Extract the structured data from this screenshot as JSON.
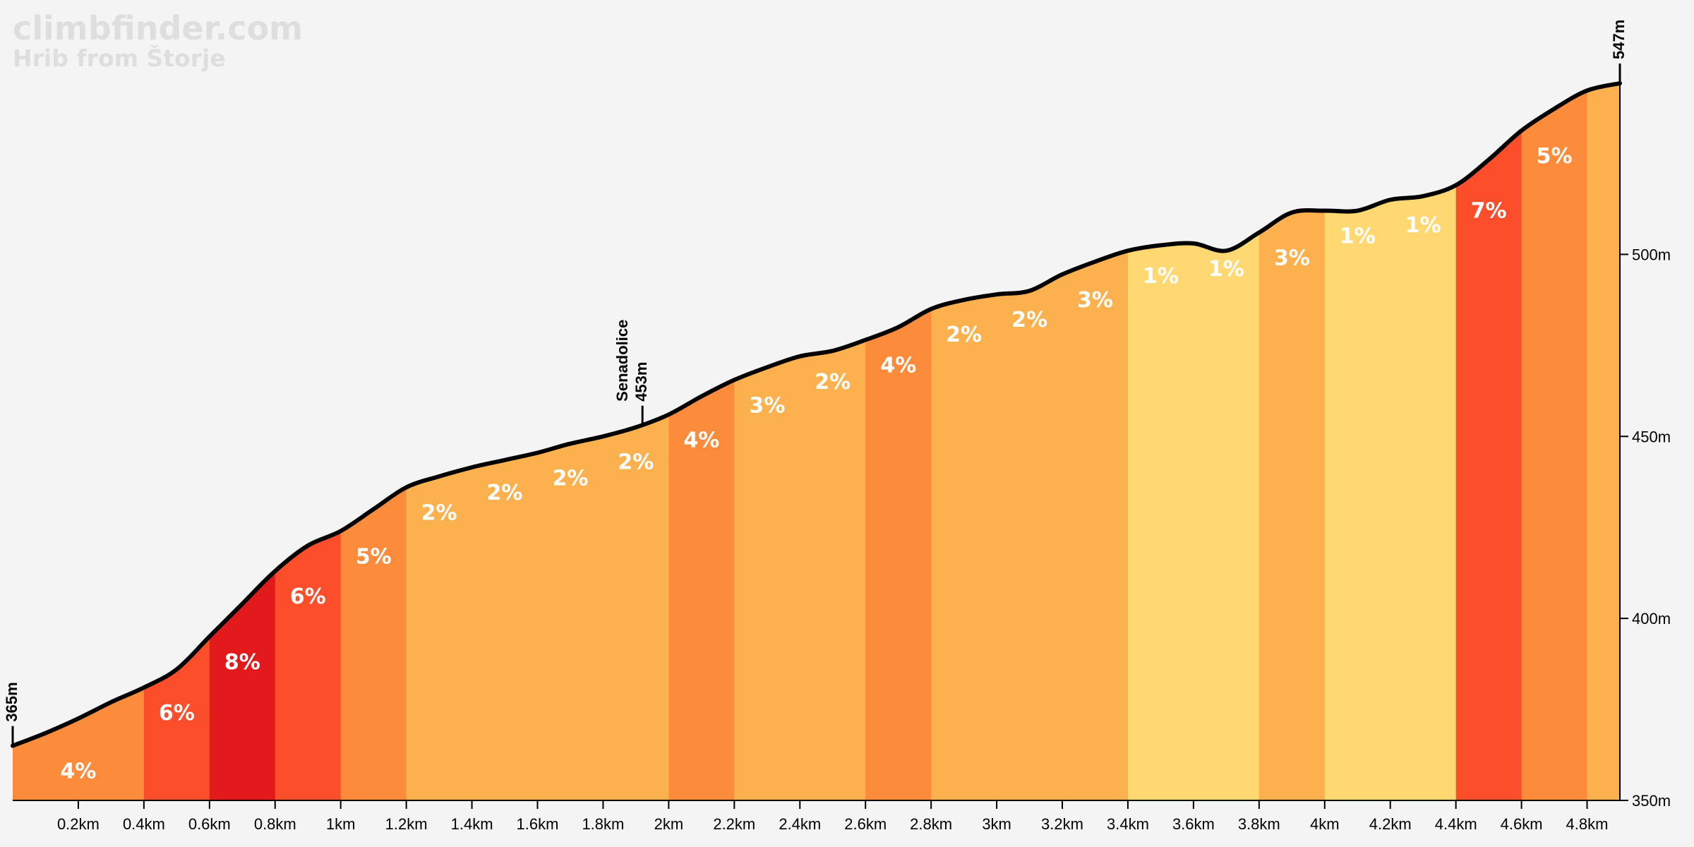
{
  "brand": {
    "site": "climbfinder.com",
    "climb_name": "Hrib from Štorje"
  },
  "chart_data": {
    "type": "area",
    "title": "Hrib from Štorje",
    "xlabel": "",
    "ylabel": "",
    "xlim": [
      0,
      4.9
    ],
    "ylim": [
      350,
      555
    ],
    "x_unit": "km",
    "y_unit": "m",
    "profile": [
      [
        0.0,
        365
      ],
      [
        0.1,
        368.5
      ],
      [
        0.2,
        372.5
      ],
      [
        0.3,
        377
      ],
      [
        0.4,
        381
      ],
      [
        0.5,
        386
      ],
      [
        0.6,
        395
      ],
      [
        0.7,
        404
      ],
      [
        0.8,
        413
      ],
      [
        0.9,
        420
      ],
      [
        1.0,
        424
      ],
      [
        1.1,
        430
      ],
      [
        1.2,
        436
      ],
      [
        1.3,
        439
      ],
      [
        1.4,
        441.5
      ],
      [
        1.5,
        443.5
      ],
      [
        1.6,
        445.5
      ],
      [
        1.7,
        448
      ],
      [
        1.8,
        450
      ],
      [
        1.9,
        452.5
      ],
      [
        2.0,
        456
      ],
      [
        2.1,
        461
      ],
      [
        2.2,
        465.5
      ],
      [
        2.3,
        469
      ],
      [
        2.4,
        472
      ],
      [
        2.5,
        473.5
      ],
      [
        2.6,
        476.5
      ],
      [
        2.7,
        480
      ],
      [
        2.8,
        485
      ],
      [
        2.9,
        487.5
      ],
      [
        3.0,
        489
      ],
      [
        3.1,
        490
      ],
      [
        3.2,
        494.5
      ],
      [
        3.3,
        498
      ],
      [
        3.4,
        501
      ],
      [
        3.5,
        502.5
      ],
      [
        3.6,
        503
      ],
      [
        3.7,
        501
      ],
      [
        3.8,
        506
      ],
      [
        3.9,
        511.5
      ],
      [
        4.0,
        512
      ],
      [
        4.1,
        512
      ],
      [
        4.2,
        515
      ],
      [
        4.3,
        516
      ],
      [
        4.4,
        519
      ],
      [
        4.5,
        526
      ],
      [
        4.6,
        534
      ],
      [
        4.7,
        540
      ],
      [
        4.8,
        545
      ],
      [
        4.9,
        547
      ]
    ],
    "segments": [
      {
        "start": 0.0,
        "end": 0.4,
        "gradient": "4%"
      },
      {
        "start": 0.4,
        "end": 0.6,
        "gradient": "6%"
      },
      {
        "start": 0.6,
        "end": 0.8,
        "gradient": "8%"
      },
      {
        "start": 0.8,
        "end": 1.0,
        "gradient": "6%"
      },
      {
        "start": 1.0,
        "end": 1.2,
        "gradient": "5%"
      },
      {
        "start": 1.2,
        "end": 1.4,
        "gradient": "2%"
      },
      {
        "start": 1.4,
        "end": 1.6,
        "gradient": "2%"
      },
      {
        "start": 1.6,
        "end": 1.8,
        "gradient": "2%"
      },
      {
        "start": 1.8,
        "end": 2.0,
        "gradient": "2%"
      },
      {
        "start": 2.0,
        "end": 2.2,
        "gradient": "4%"
      },
      {
        "start": 2.2,
        "end": 2.4,
        "gradient": "3%"
      },
      {
        "start": 2.4,
        "end": 2.6,
        "gradient": "2%"
      },
      {
        "start": 2.6,
        "end": 2.8,
        "gradient": "4%"
      },
      {
        "start": 2.8,
        "end": 3.0,
        "gradient": "2%"
      },
      {
        "start": 3.0,
        "end": 3.2,
        "gradient": "2%"
      },
      {
        "start": 3.2,
        "end": 3.4,
        "gradient": "3%"
      },
      {
        "start": 3.4,
        "end": 3.6,
        "gradient": "1%"
      },
      {
        "start": 3.6,
        "end": 3.8,
        "gradient": "1%"
      },
      {
        "start": 3.8,
        "end": 4.0,
        "gradient": "3%"
      },
      {
        "start": 4.0,
        "end": 4.2,
        "gradient": "1%"
      },
      {
        "start": 4.2,
        "end": 4.4,
        "gradient": "1%"
      },
      {
        "start": 4.4,
        "end": 4.6,
        "gradient": "7%"
      },
      {
        "start": 4.6,
        "end": 4.8,
        "gradient": "5%"
      },
      {
        "start": 4.8,
        "end": 4.9,
        "gradient": ""
      }
    ],
    "gradient_colors": {
      "1%": "#ffd872",
      "2%": "#fdb14e",
      "3%": "#fdb14e",
      "4%": "#fc8c3c",
      "5%": "#fc8c3c",
      "6%": "#fc4e2a",
      "7%": "#fc4e2a",
      "8%": "#e31a1c",
      "": "#fdb14e"
    },
    "x_ticks": [
      {
        "value": 0.2,
        "label": "0.2km"
      },
      {
        "value": 0.4,
        "label": "0.4km"
      },
      {
        "value": 0.6,
        "label": "0.6km"
      },
      {
        "value": 0.8,
        "label": "0.8km"
      },
      {
        "value": 1.0,
        "label": "1km"
      },
      {
        "value": 1.2,
        "label": "1.2km"
      },
      {
        "value": 1.4,
        "label": "1.4km"
      },
      {
        "value": 1.6,
        "label": "1.6km"
      },
      {
        "value": 1.8,
        "label": "1.8km"
      },
      {
        "value": 2.0,
        "label": "2km"
      },
      {
        "value": 2.2,
        "label": "2.2km"
      },
      {
        "value": 2.4,
        "label": "2.4km"
      },
      {
        "value": 2.6,
        "label": "2.6km"
      },
      {
        "value": 2.8,
        "label": "2.8km"
      },
      {
        "value": 3.0,
        "label": "3km"
      },
      {
        "value": 3.2,
        "label": "3.2km"
      },
      {
        "value": 3.4,
        "label": "3.4km"
      },
      {
        "value": 3.6,
        "label": "3.6km"
      },
      {
        "value": 3.8,
        "label": "3.8km"
      },
      {
        "value": 4.0,
        "label": "4km"
      },
      {
        "value": 4.2,
        "label": "4.2km"
      },
      {
        "value": 4.4,
        "label": "4.4km"
      },
      {
        "value": 4.6,
        "label": "4.6km"
      },
      {
        "value": 4.8,
        "label": "4.8km"
      }
    ],
    "y_ticks": [
      {
        "value": 350,
        "label": "350m"
      },
      {
        "value": 400,
        "label": "400m"
      },
      {
        "value": 450,
        "label": "450m"
      },
      {
        "value": 500,
        "label": "500m"
      }
    ],
    "markers": [
      {
        "name": "start",
        "distance": 0.0,
        "elevation": 365,
        "lines": [
          "365m"
        ]
      },
      {
        "name": "senadolice",
        "distance": 1.92,
        "elevation": 453,
        "lines": [
          "Senadolice",
          "453m"
        ]
      },
      {
        "name": "summit",
        "distance": 4.9,
        "elevation": 547,
        "lines": [
          "547m"
        ]
      }
    ]
  }
}
